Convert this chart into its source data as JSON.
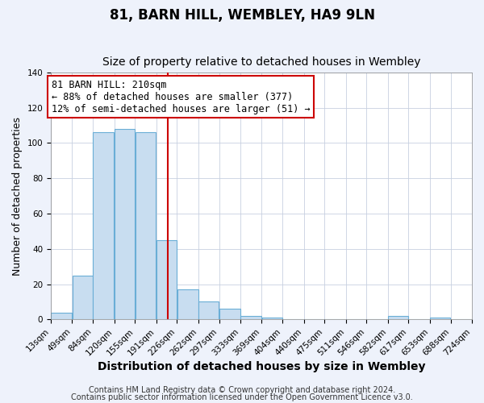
{
  "title": "81, BARN HILL, WEMBLEY, HA9 9LN",
  "subtitle": "Size of property relative to detached houses in Wembley",
  "xlabel": "Distribution of detached houses by size in Wembley",
  "ylabel": "Number of detached properties",
  "bin_edges": [
    13,
    49,
    84,
    120,
    155,
    191,
    226,
    262,
    297,
    333,
    369,
    404,
    440,
    475,
    511,
    546,
    582,
    617,
    653,
    688,
    724
  ],
  "bin_counts": [
    4,
    25,
    106,
    108,
    106,
    45,
    17,
    10,
    6,
    2,
    1,
    0,
    0,
    0,
    0,
    0,
    2,
    0,
    1,
    0
  ],
  "bar_facecolor": "#c8ddf0",
  "bar_edgecolor": "#6aaed6",
  "vline_x": 210,
  "vline_color": "#cc0000",
  "annotation_text": "81 BARN HILL: 210sqm\n← 88% of detached houses are smaller (377)\n12% of semi-detached houses are larger (51) →",
  "annotation_box_edgecolor": "#cc0000",
  "annotation_box_facecolor": "#ffffff",
  "ylim": [
    0,
    140
  ],
  "yticks": [
    0,
    20,
    40,
    60,
    80,
    100,
    120,
    140
  ],
  "footer1": "Contains HM Land Registry data © Crown copyright and database right 2024.",
  "footer2": "Contains public sector information licensed under the Open Government Licence v3.0.",
  "background_color": "#eef2fb",
  "plot_background": "#ffffff",
  "grid_color": "#c8d0e0",
  "title_fontsize": 12,
  "subtitle_fontsize": 10,
  "xlabel_fontsize": 10,
  "ylabel_fontsize": 9,
  "tick_fontsize": 7.5,
  "annotation_fontsize": 8.5,
  "footer_fontsize": 7
}
